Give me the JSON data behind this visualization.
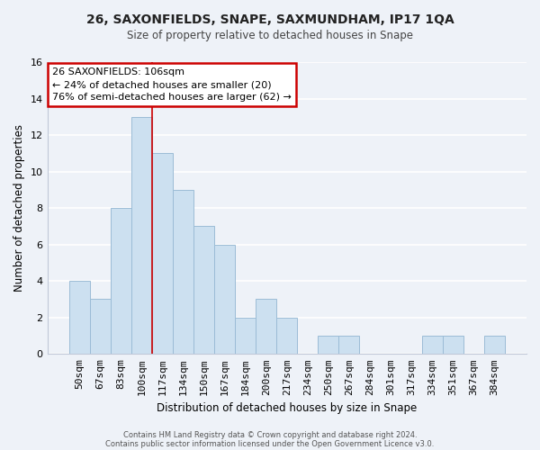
{
  "title1": "26, SAXONFIELDS, SNAPE, SAXMUNDHAM, IP17 1QA",
  "title2": "Size of property relative to detached houses in Snape",
  "xlabel": "Distribution of detached houses by size in Snape",
  "ylabel": "Number of detached properties",
  "bar_labels": [
    "50sqm",
    "67sqm",
    "83sqm",
    "100sqm",
    "117sqm",
    "134sqm",
    "150sqm",
    "167sqm",
    "184sqm",
    "200sqm",
    "217sqm",
    "234sqm",
    "250sqm",
    "267sqm",
    "284sqm",
    "301sqm",
    "317sqm",
    "334sqm",
    "351sqm",
    "367sqm",
    "384sqm"
  ],
  "bar_values": [
    4,
    3,
    8,
    13,
    11,
    9,
    7,
    6,
    2,
    3,
    2,
    0,
    1,
    1,
    0,
    0,
    0,
    1,
    1,
    0,
    1
  ],
  "bar_color": "#cce0f0",
  "bar_edge_color": "#9bbcd6",
  "vline_color": "#cc0000",
  "ylim": [
    0,
    16
  ],
  "yticks": [
    0,
    2,
    4,
    6,
    8,
    10,
    12,
    14,
    16
  ],
  "annotation_title": "26 SAXONFIELDS: 106sqm",
  "annotation_line1": "← 24% of detached houses are smaller (20)",
  "annotation_line2": "76% of semi-detached houses are larger (62) →",
  "box_facecolor": "#ffffff",
  "box_edgecolor": "#cc0000",
  "footer1": "Contains HM Land Registry data © Crown copyright and database right 2024.",
  "footer2": "Contains public sector information licensed under the Open Government Licence v3.0.",
  "bg_color": "#eef2f8",
  "grid_color": "#ffffff",
  "spine_color": "#c0c8d8"
}
